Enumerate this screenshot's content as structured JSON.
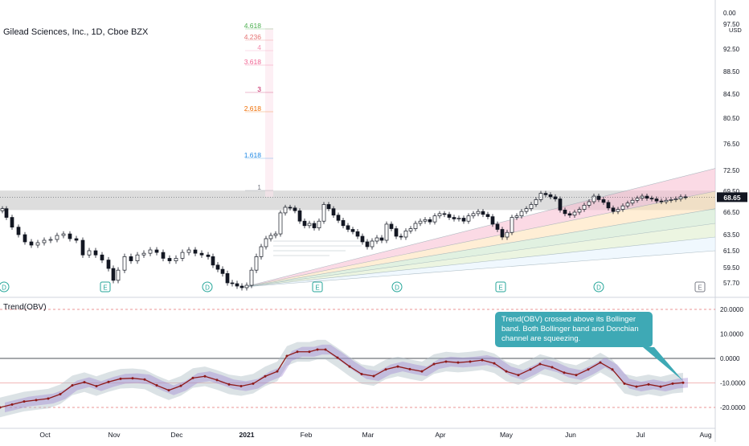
{
  "symbol": {
    "title": "Gilead Sciences, Inc., 1D, Cboe BZX"
  },
  "currency": "USD",
  "last_price": "68.65",
  "indicator": {
    "title": "Trend(OBV)"
  },
  "annotation": {
    "text": "Trend(OBV) crossed above its Bollinger band. Both Bollinger band and Donchian channel are squeezing."
  },
  "fib_levels": [
    {
      "label": "4.618",
      "color": "#4caf50"
    },
    {
      "label": "4.236",
      "color": "#e57373"
    },
    {
      "label": "4",
      "color": "#f48fb1"
    },
    {
      "label": "3.618",
      "color": "#f06292"
    },
    {
      "label": "3",
      "color": "#c2185b"
    },
    {
      "label": "2.618",
      "color": "#ef6c00"
    },
    {
      "label": "1.618",
      "color": "#1e88e5"
    },
    {
      "label": "1",
      "color": "#787b86"
    }
  ],
  "event_markers": [
    {
      "label": "D"
    },
    {
      "label": "E"
    },
    {
      "label": "D"
    },
    {
      "label": "E"
    },
    {
      "label": "D"
    },
    {
      "label": "E"
    },
    {
      "label": "D"
    },
    {
      "label": "E"
    }
  ],
  "colors": {
    "up": "#ffffff",
    "down": "#131722",
    "band": "#b0bec5",
    "obv_line": "#8e1a1a",
    "zone": "#9e9e9e",
    "callout": "#3ea9b5"
  },
  "chart_data": [
    {
      "type": "candlestick",
      "title": "Gilead Sciences, Inc., 1D, Cboe BZX",
      "y_ticks": [
        "0.00",
        "97.50",
        "92.50",
        "88.50",
        "84.50",
        "80.50",
        "76.50",
        "72.50",
        "69.50",
        "66.50",
        "63.50",
        "61.50",
        "59.50",
        "57.70"
      ],
      "y_tick_values": [
        0,
        97.5,
        92.5,
        88.5,
        84.5,
        80.5,
        76.5,
        72.5,
        69.5,
        66.5,
        63.5,
        61.5,
        59.5,
        57.7
      ],
      "x_ticks": [
        "Oct",
        "Nov",
        "Dec",
        "2021",
        "Feb",
        "Mar",
        "Apr",
        "May",
        "Jun",
        "Jul",
        "Aug"
      ],
      "last": 68.65,
      "series": [
        {
          "values": [
            [
              0,
              67.0
            ],
            [
              5,
              65.8
            ],
            [
              12,
              64.5
            ],
            [
              20,
              63.5
            ],
            [
              28,
              62.6
            ],
            [
              36,
              62.2
            ],
            [
              44,
              62.5
            ],
            [
              52,
              62.8
            ],
            [
              60,
              62.9
            ],
            [
              68,
              63.4
            ],
            [
              76,
              63.6
            ],
            [
              84,
              63.0
            ],
            [
              92,
              62.8
            ],
            [
              100,
              61.0
            ],
            [
              108,
              61.5
            ],
            [
              116,
              61.0
            ],
            [
              124,
              60.4
            ],
            [
              132,
              59.4
            ],
            [
              138,
              58.0
            ],
            [
              144,
              59.2
            ],
            [
              152,
              60.8
            ],
            [
              160,
              60.3
            ],
            [
              168,
              61.0
            ],
            [
              176,
              61.2
            ],
            [
              184,
              61.6
            ],
            [
              192,
              61.3
            ],
            [
              200,
              60.6
            ],
            [
              208,
              60.3
            ],
            [
              216,
              60.6
            ],
            [
              224,
              61.3
            ],
            [
              232,
              61.6
            ],
            [
              240,
              61.2
            ],
            [
              248,
              61.0
            ],
            [
              256,
              60.8
            ],
            [
              262,
              59.8
            ],
            [
              268,
              59.3
            ],
            [
              274,
              58.8
            ],
            [
              280,
              57.7
            ],
            [
              286,
              57.6
            ],
            [
              292,
              57.3
            ],
            [
              298,
              57.1
            ],
            [
              304,
              57.4
            ],
            [
              310,
              59.2
            ],
            [
              316,
              60.8
            ],
            [
              322,
              62.0
            ],
            [
              328,
              63.0
            ],
            [
              334,
              63.4
            ],
            [
              340,
              63.6
            ],
            [
              346,
              66.4
            ],
            [
              352,
              67.2
            ],
            [
              358,
              67.1
            ],
            [
              364,
              66.7
            ],
            [
              370,
              65.3
            ],
            [
              376,
              64.7
            ],
            [
              382,
              65.0
            ],
            [
              388,
              64.4
            ],
            [
              394,
              65.3
            ],
            [
              400,
              67.6
            ],
            [
              406,
              67.0
            ],
            [
              412,
              66.1
            ],
            [
              418,
              65.4
            ],
            [
              424,
              64.7
            ],
            [
              430,
              64.2
            ],
            [
              436,
              63.9
            ],
            [
              442,
              63.3
            ],
            [
              448,
              62.6
            ],
            [
              454,
              62.0
            ],
            [
              460,
              62.7
            ],
            [
              466,
              63.1
            ],
            [
              472,
              62.8
            ],
            [
              478,
              64.9
            ],
            [
              484,
              64.3
            ],
            [
              490,
              63.3
            ],
            [
              496,
              63.2
            ],
            [
              502,
              64.0
            ],
            [
              508,
              64.3
            ],
            [
              514,
              65.0
            ],
            [
              520,
              65.3
            ],
            [
              526,
              65.5
            ],
            [
              532,
              65.2
            ],
            [
              538,
              66.0
            ],
            [
              544,
              66.3
            ],
            [
              550,
              66.2
            ],
            [
              556,
              65.8
            ],
            [
              562,
              65.6
            ],
            [
              568,
              65.7
            ],
            [
              574,
              65.3
            ],
            [
              580,
              66.0
            ],
            [
              586,
              66.3
            ],
            [
              592,
              66.6
            ],
            [
              598,
              66.2
            ],
            [
              604,
              65.9
            ],
            [
              610,
              64.9
            ],
            [
              616,
              64.2
            ],
            [
              622,
              63.2
            ],
            [
              628,
              63.8
            ],
            [
              634,
              65.8
            ],
            [
              640,
              66.0
            ],
            [
              646,
              66.6
            ],
            [
              652,
              67.0
            ],
            [
              658,
              67.6
            ],
            [
              664,
              68.3
            ],
            [
              670,
              69.2
            ],
            [
              676,
              69.0
            ],
            [
              682,
              68.7
            ],
            [
              688,
              68.4
            ],
            [
              694,
              66.8
            ],
            [
              700,
              66.3
            ],
            [
              706,
              66.1
            ],
            [
              712,
              66.5
            ],
            [
              718,
              66.9
            ],
            [
              724,
              67.5
            ],
            [
              730,
              68.0
            ],
            [
              736,
              68.8
            ],
            [
              742,
              68.3
            ],
            [
              748,
              67.9
            ],
            [
              754,
              67.1
            ],
            [
              760,
              66.6
            ],
            [
              766,
              66.9
            ],
            [
              772,
              67.4
            ],
            [
              778,
              67.8
            ],
            [
              784,
              68.2
            ],
            [
              790,
              68.5
            ],
            [
              796,
              68.8
            ],
            [
              802,
              68.5
            ],
            [
              808,
              68.4
            ],
            [
              814,
              68.1
            ],
            [
              820,
              68.0
            ],
            [
              826,
              68.2
            ],
            [
              832,
              68.3
            ],
            [
              838,
              68.4
            ],
            [
              844,
              68.7
            ],
            [
              850,
              68.65
            ]
          ]
        }
      ]
    },
    {
      "type": "line",
      "title": "Trend(OBV)",
      "y_ticks": [
        "20.0000",
        "10.0000",
        "0.0000",
        "-10.0000",
        "-20.0000"
      ],
      "y_tick_values": [
        20,
        10,
        0,
        -10,
        -20
      ],
      "series": [
        {
          "name": "Trend(OBV)",
          "values": [
            [
              0,
              -20
            ],
            [
              15,
              -18.8
            ],
            [
              30,
              -17.6
            ],
            [
              45,
              -17.0
            ],
            [
              60,
              -16.4
            ],
            [
              75,
              -14.6
            ],
            [
              90,
              -11.0
            ],
            [
              105,
              -9.7
            ],
            [
              120,
              -11.3
            ],
            [
              135,
              -9.6
            ],
            [
              150,
              -8.3
            ],
            [
              165,
              -8.1
            ],
            [
              180,
              -8.6
            ],
            [
              195,
              -11.0
            ],
            [
              210,
              -13.0
            ],
            [
              225,
              -11.2
            ],
            [
              240,
              -8.0
            ],
            [
              255,
              -7.3
            ],
            [
              270,
              -8.8
            ],
            [
              285,
              -10.6
            ],
            [
              300,
              -11.3
            ],
            [
              315,
              -10.3
            ],
            [
              330,
              -7.3
            ],
            [
              345,
              -5.3
            ],
            [
              357,
              1.0
            ],
            [
              370,
              2.7
            ],
            [
              385,
              2.7
            ],
            [
              395,
              3.6
            ],
            [
              405,
              3.6
            ],
            [
              420,
              0.3
            ],
            [
              435,
              -3.3
            ],
            [
              450,
              -6.4
            ],
            [
              465,
              -7.2
            ],
            [
              480,
              -4.5
            ],
            [
              495,
              -3.3
            ],
            [
              510,
              -4.4
            ],
            [
              525,
              -5.3
            ],
            [
              540,
              -2.3
            ],
            [
              555,
              -1.3
            ],
            [
              570,
              -1.7
            ],
            [
              585,
              -1.3
            ],
            [
              600,
              -0.7
            ],
            [
              615,
              -2.0
            ],
            [
              630,
              -5.3
            ],
            [
              645,
              -6.8
            ],
            [
              660,
              -4.5
            ],
            [
              672,
              -2.3
            ],
            [
              687,
              -3.6
            ],
            [
              702,
              -5.8
            ],
            [
              717,
              -6.8
            ],
            [
              732,
              -4.5
            ],
            [
              747,
              -1.7
            ],
            [
              762,
              -4.5
            ],
            [
              777,
              -10.3
            ],
            [
              792,
              -11.5
            ],
            [
              807,
              -10.6
            ],
            [
              822,
              -11.5
            ],
            [
              837,
              -10.3
            ],
            [
              850,
              -9.9
            ]
          ]
        }
      ]
    }
  ]
}
